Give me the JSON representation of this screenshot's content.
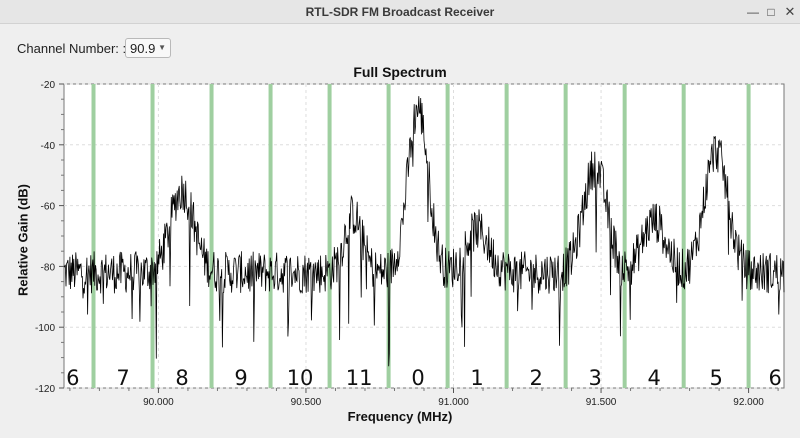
{
  "window": {
    "title": "RTL-SDR FM Broadcast Receiver",
    "minimize_glyph": "—",
    "maximize_glyph": "□",
    "close_glyph": "✕"
  },
  "controls": {
    "channel_label": "Channel Number: :",
    "channel_value": "90.9"
  },
  "chart_data": {
    "type": "line",
    "title": "Full Spectrum",
    "xlabel": "Frequency (MHz)",
    "ylabel": "Relative Gain (dB)",
    "xlim": [
      89.68,
      92.12
    ],
    "ylim": [
      -120,
      -20
    ],
    "xticks": [
      90.0,
      90.5,
      91.0,
      91.5,
      92.0
    ],
    "xtick_labels": [
      "90.000",
      "90.500",
      "91.000",
      "91.500",
      "92.000"
    ],
    "yticks": [
      -120,
      -100,
      -80,
      -60,
      -40,
      -20
    ],
    "ytick_labels": [
      "-120",
      "-100",
      "-80",
      "-60",
      "-40",
      "-20"
    ],
    "grid": true,
    "series_color": "#000000",
    "marker_color": "#9fcfa0",
    "channel_markers_mhz": [
      89.78,
      89.98,
      90.18,
      90.38,
      90.58,
      90.78,
      90.98,
      91.18,
      91.38,
      91.58,
      91.78,
      92.0
    ],
    "channel_labels": [
      {
        "label": "6",
        "x": 89.71
      },
      {
        "label": "7",
        "x": 89.88
      },
      {
        "label": "8",
        "x": 90.08
      },
      {
        "label": "9",
        "x": 90.28
      },
      {
        "label": "10",
        "x": 90.48
      },
      {
        "label": "11",
        "x": 90.68
      },
      {
        "label": "0",
        "x": 90.88
      },
      {
        "label": "1",
        "x": 91.08
      },
      {
        "label": "2",
        "x": 91.28
      },
      {
        "label": "3",
        "x": 91.48
      },
      {
        "label": "4",
        "x": 91.68
      },
      {
        "label": "5",
        "x": 91.89
      },
      {
        "label": "6",
        "x": 92.09
      }
    ],
    "baseline_db": -82,
    "peaks": [
      {
        "center_mhz": 90.08,
        "peak_db": -55,
        "width_mhz": 0.04
      },
      {
        "center_mhz": 90.88,
        "peak_db": -28,
        "width_mhz": 0.035
      },
      {
        "center_mhz": 91.08,
        "peak_db": -68,
        "width_mhz": 0.04
      },
      {
        "center_mhz": 91.48,
        "peak_db": -47,
        "width_mhz": 0.04
      },
      {
        "center_mhz": 91.68,
        "peak_db": -65,
        "width_mhz": 0.04
      },
      {
        "center_mhz": 91.89,
        "peak_db": -42,
        "width_mhz": 0.04
      },
      {
        "center_mhz": 90.66,
        "peak_db": -63,
        "width_mhz": 0.03
      }
    ]
  }
}
